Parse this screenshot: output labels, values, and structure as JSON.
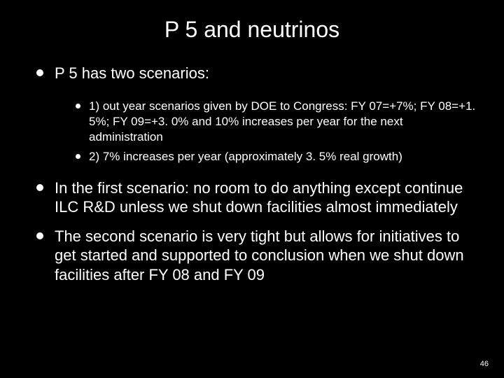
{
  "slide": {
    "background_color": "#000000",
    "text_color": "#ffffff",
    "bullet_color": "#ffffff",
    "title": "P 5 and neutrinos",
    "title_fontsize": 32,
    "body_fontsize_lvl1": 22,
    "body_fontsize_lvl2": 17,
    "page_number": "46",
    "bullets": [
      {
        "text": "P 5 has two scenarios:",
        "sub": [
          "1) out year scenarios given by DOE to Congress:  FY 07=+7%; FY 08=+1. 5%;  FY 09=+3. 0% and 10% increases per year for the next administration",
          "2) 7% increases per year (approximately 3. 5% real growth)"
        ]
      },
      {
        "text": "In the first scenario: no room to do anything except continue ILC R&D unless we shut down facilities almost immediately",
        "sub": []
      },
      {
        "text": "The second scenario is very tight but allows for initiatives to get started and supported to conclusion when we shut down facilities after FY 08 and FY 09",
        "sub": []
      }
    ]
  }
}
